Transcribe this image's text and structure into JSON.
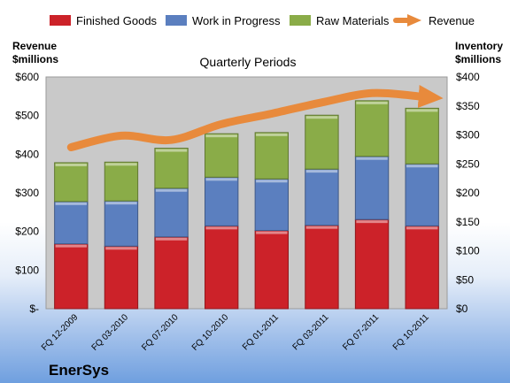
{
  "colors": {
    "finished_goods": "#cc2229",
    "work_in_progress": "#5b7fbf",
    "raw_materials": "#8aac48",
    "revenue": "#e88a3c",
    "plot_background": "#c9c9c9"
  },
  "chart_data": {
    "type": "bar",
    "stacked": true,
    "title": "Quarterly Periods",
    "brand": "EnerSys",
    "left_axis_label": [
      "Revenue",
      "$millions"
    ],
    "right_axis_label": [
      "Inventory",
      "$millions"
    ],
    "categories": [
      "FQ 12-2009",
      "FQ 03-2010",
      "FQ 07-2010",
      "FQ 10-2010",
      "FQ 01-2011",
      "FQ 03-2011",
      "FQ 07-2011",
      "FQ 10-2011"
    ],
    "legend_placement": "top",
    "grid": false,
    "inventory_axis": {
      "range": [
        0,
        400
      ],
      "ticks": [
        0,
        50,
        100,
        150,
        200,
        250,
        300,
        350,
        400
      ],
      "tick_labels": [
        "$0",
        "$50",
        "$100",
        "$150",
        "$200",
        "$250",
        "$300",
        "$350",
        "$400"
      ]
    },
    "revenue_axis": {
      "range": [
        0,
        600
      ],
      "ticks": [
        0,
        100,
        200,
        300,
        400,
        500,
        600
      ],
      "tick_labels": [
        "$-",
        "$100",
        "$200",
        "$300",
        "$400",
        "$500",
        "$600"
      ]
    },
    "series": [
      {
        "name": "Finished Goods",
        "axis": "inventory",
        "color_key": "finished_goods",
        "values": [
          112,
          108,
          124,
          143,
          135,
          144,
          154,
          143
        ]
      },
      {
        "name": "Work in Progress",
        "axis": "inventory",
        "color_key": "work_in_progress",
        "values": [
          73,
          78,
          84,
          84,
          89,
          97,
          109,
          107
        ]
      },
      {
        "name": "Raw Materials",
        "axis": "inventory",
        "color_key": "raw_materials",
        "values": [
          67,
          67,
          69,
          75,
          80,
          93,
          96,
          96
        ]
      }
    ],
    "line_series": {
      "name": "Revenue",
      "axis": "revenue",
      "color_key": "revenue",
      "values": [
        418,
        448,
        437,
        478,
        505,
        534,
        558,
        549
      ]
    }
  }
}
